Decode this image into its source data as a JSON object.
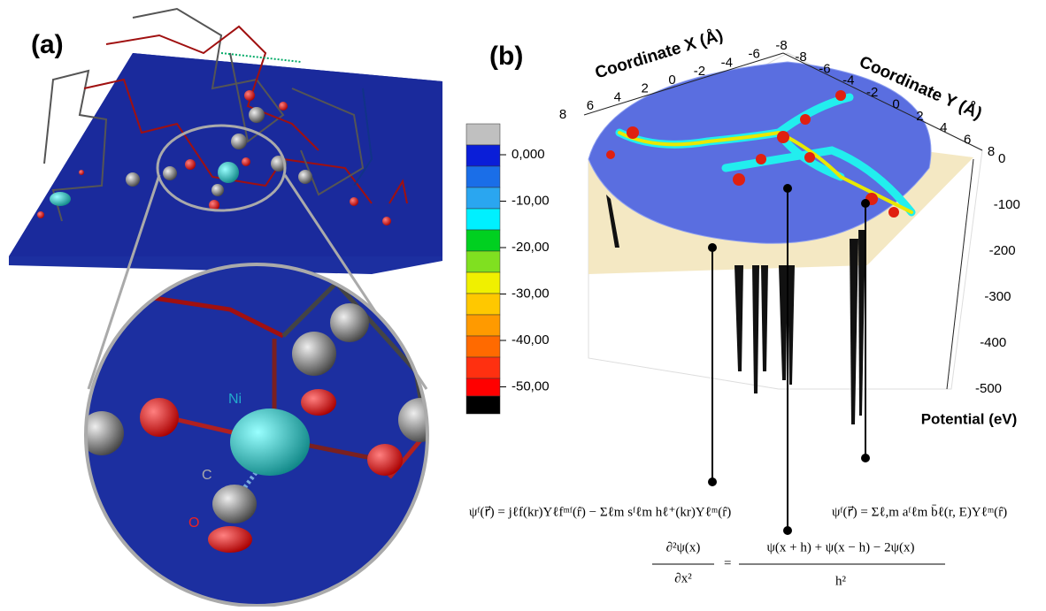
{
  "panel_a": {
    "label": "(a)",
    "atoms": {
      "ni": "Ni",
      "c": "C",
      "o": "O"
    }
  },
  "panel_b": {
    "label": "(b)",
    "colorbar": {
      "labels": [
        "0,000",
        "-10,00",
        "-20,00",
        "-30,00",
        "-40,00",
        "-50,00"
      ]
    },
    "axis_x": {
      "title": "Coordinate X (Å)",
      "ticks": [
        "8",
        "6",
        "4",
        "2",
        "0",
        "-2",
        "-4",
        "-6",
        "-8"
      ]
    },
    "axis_y": {
      "title": "Coordinate Y (Å)",
      "ticks": [
        "-8",
        "-6",
        "-4",
        "-2",
        "0",
        "2",
        "4",
        "6",
        "8"
      ]
    },
    "axis_z": {
      "title": "Potential (eV)",
      "ticks": [
        "0",
        "-100",
        "-200",
        "-300",
        "-400",
        "-500"
      ]
    },
    "equations": {
      "left": "ψᶠ(r⃗) = jℓf(kr)Yℓfᵐᶠ(r̂) − Σℓm sᶠℓm hℓ⁺(kr)Yℓᵐ(r̂)",
      "right": "ψᶠ(r⃗) = Σℓ,m aᶠℓm b̄ℓ(r, E)Yℓᵐ(r̂)",
      "center_numerator_left": "∂²ψ(x)",
      "center_denominator_left": "∂x²",
      "center_numerator_right": "ψ(x + h) + ψ(x − h) − 2ψ(x)",
      "center_denominator_right": "h²"
    }
  }
}
